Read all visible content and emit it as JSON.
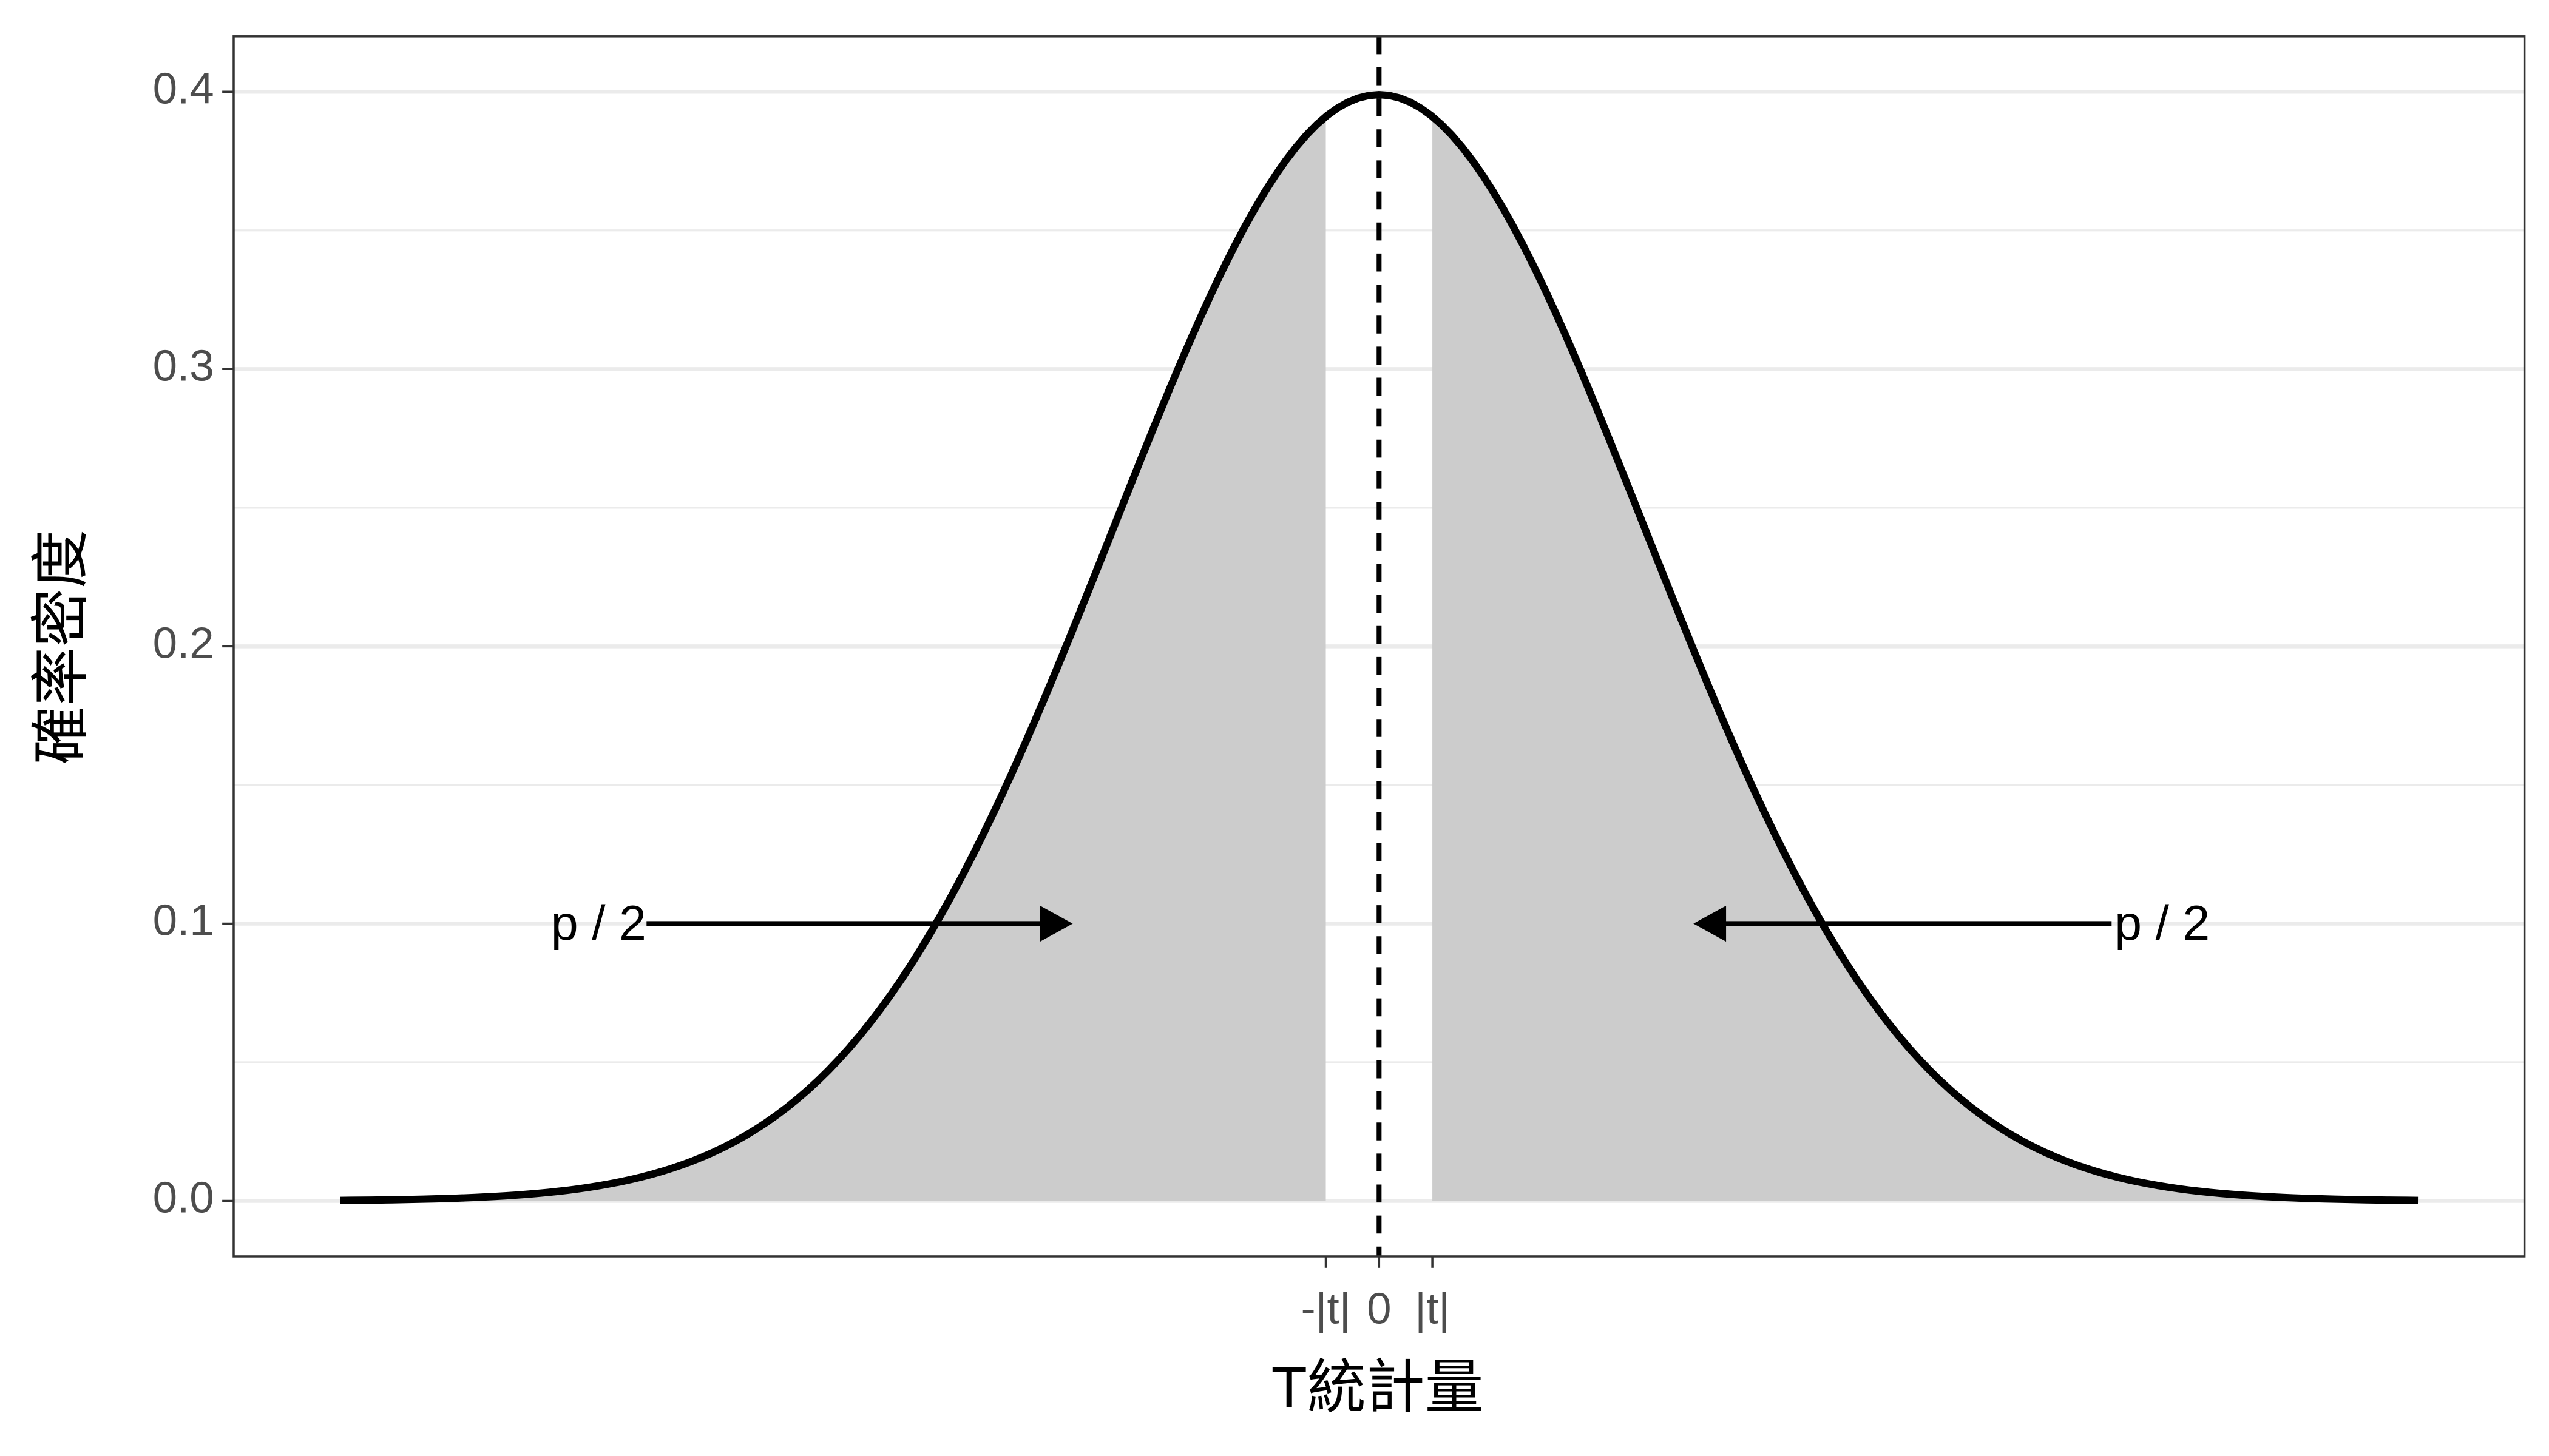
{
  "chart_data": {
    "type": "density",
    "x_label": "T統計量",
    "y_label": "確率密度",
    "curve": {
      "distribution": "normal",
      "mean": 0,
      "sd": 1,
      "from": -3.9,
      "to": 3.9,
      "color": "#000000"
    },
    "shade_color": "#cccccc",
    "vline": {
      "x": 0,
      "style": "dashed"
    },
    "xlim": [
      -4.3,
      4.3
    ],
    "ylim": [
      -0.02,
      0.42
    ],
    "xticks": [
      {
        "value": -0.2,
        "label": "-|t|"
      },
      0,
      {
        "value": 0.2,
        "label": "|t|"
      }
    ],
    "yticks": [
      {
        "value": 0,
        "label": "0.0"
      },
      0.1,
      0.2,
      0.3,
      0.4
    ],
    "minor_yticks": [
      0.05,
      0.15,
      0.25,
      0.35
    ],
    "grid": true,
    "annotations": [
      {
        "text": "p / 2",
        "x": -2.93,
        "y": 0.1,
        "arrow_from": -2.75,
        "arrow_to": -1.15
      },
      {
        "text": "p / 2",
        "x": 2.94,
        "y": 0.1,
        "arrow_from": 2.75,
        "arrow_to": 1.18
      }
    ]
  }
}
